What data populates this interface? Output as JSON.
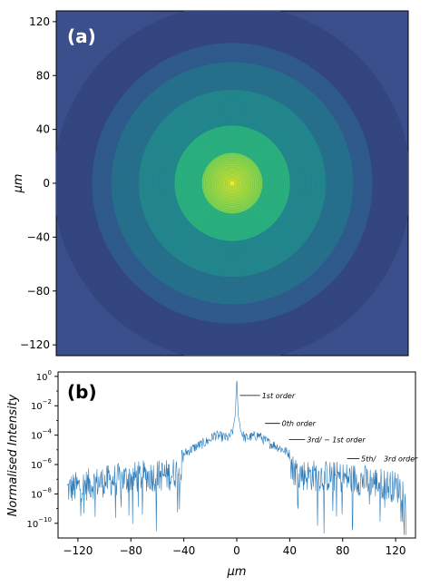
{
  "chart_data": [
    {
      "panel_label": "(a)",
      "type": "heatmap",
      "description_visible": "circular diffraction ring intensity image, bright central disk",
      "xlim": [
        -128,
        128
      ],
      "ylim": [
        -128,
        128
      ],
      "ylabel": "μm",
      "yticks": [
        120,
        80,
        40,
        0,
        -40,
        -80,
        -120
      ],
      "ytick_labels": [
        "120",
        "80",
        "40",
        "0",
        "−40",
        "−80",
        "−120"
      ],
      "colormap": [
        "#3b2c74",
        "#2f5b8c",
        "#22878d",
        "#2ab07e",
        "#79d151",
        "#c9e030"
      ],
      "background_color": "#3b4f8c"
    },
    {
      "panel_label": "(b)",
      "type": "line",
      "xlabel": "μm",
      "ylabel": "Normalised Intensity",
      "xlim": [
        -135,
        135
      ],
      "ylog": true,
      "ylim_exp": [
        -11,
        0.3
      ],
      "xticks": [
        -120,
        -80,
        -40,
        0,
        40,
        80,
        120
      ],
      "xtick_labels": [
        "−120",
        "−80",
        "−40",
        "0",
        "40",
        "80",
        "120"
      ],
      "yticks_exp": [
        0,
        -2,
        -4,
        -6,
        -8,
        -10
      ],
      "ytick_base": "10",
      "line_color": "#2a7ab9",
      "series": [
        {
          "profile_log10": [
            [
              -128,
              -7.7
            ],
            [
              -110,
              -7.3
            ],
            [
              -90,
              -7.0
            ],
            [
              -70,
              -6.8
            ],
            [
              -50,
              -6.7
            ],
            [
              -42,
              -6.3
            ],
            [
              -40,
              -5.3
            ],
            [
              -36,
              -5.05
            ],
            [
              -30,
              -4.75
            ],
            [
              -25,
              -4.55
            ],
            [
              -20,
              -4.3
            ],
            [
              -17,
              -4.0
            ],
            [
              -12,
              -4.1
            ],
            [
              -6,
              -4.2
            ],
            [
              -3,
              -3.7
            ],
            [
              -1,
              -2.5
            ],
            [
              0,
              0
            ],
            [
              1,
              -2.5
            ],
            [
              3,
              -3.7
            ],
            [
              6,
              -4.2
            ],
            [
              12,
              -4.1
            ],
            [
              17,
              -4.0
            ],
            [
              20,
              -4.3
            ],
            [
              25,
              -4.55
            ],
            [
              30,
              -4.75
            ],
            [
              36,
              -5.05
            ],
            [
              40,
              -5.3
            ],
            [
              42,
              -6.3
            ],
            [
              50,
              -6.7
            ],
            [
              70,
              -6.8
            ],
            [
              90,
              -7.0
            ],
            [
              110,
              -7.3
            ],
            [
              128,
              -7.7
            ]
          ]
        }
      ],
      "annotations": [
        {
          "text": "1st order",
          "x": 1,
          "y_exp": -1.3,
          "label_x": 19,
          "label_y_exp": -1.3
        },
        {
          "text": "0th order",
          "x": 20,
          "y_exp": -3.2,
          "label_x": 34,
          "label_y_exp": -3.2
        },
        {
          "text": "3rd/ − 1st order",
          "x": 38,
          "y_exp": -4.3,
          "label_x": 53,
          "label_y_exp": -4.3
        },
        {
          "text": "5th/",
          "x": 82,
          "y_exp": -5.6,
          "label_x": 94,
          "label_y_exp": -5.6
        },
        {
          "text": "3rd order",
          "x": 110,
          "y_exp": -5.6,
          "label_x": 111,
          "label_y_exp": -5.6
        }
      ]
    }
  ]
}
